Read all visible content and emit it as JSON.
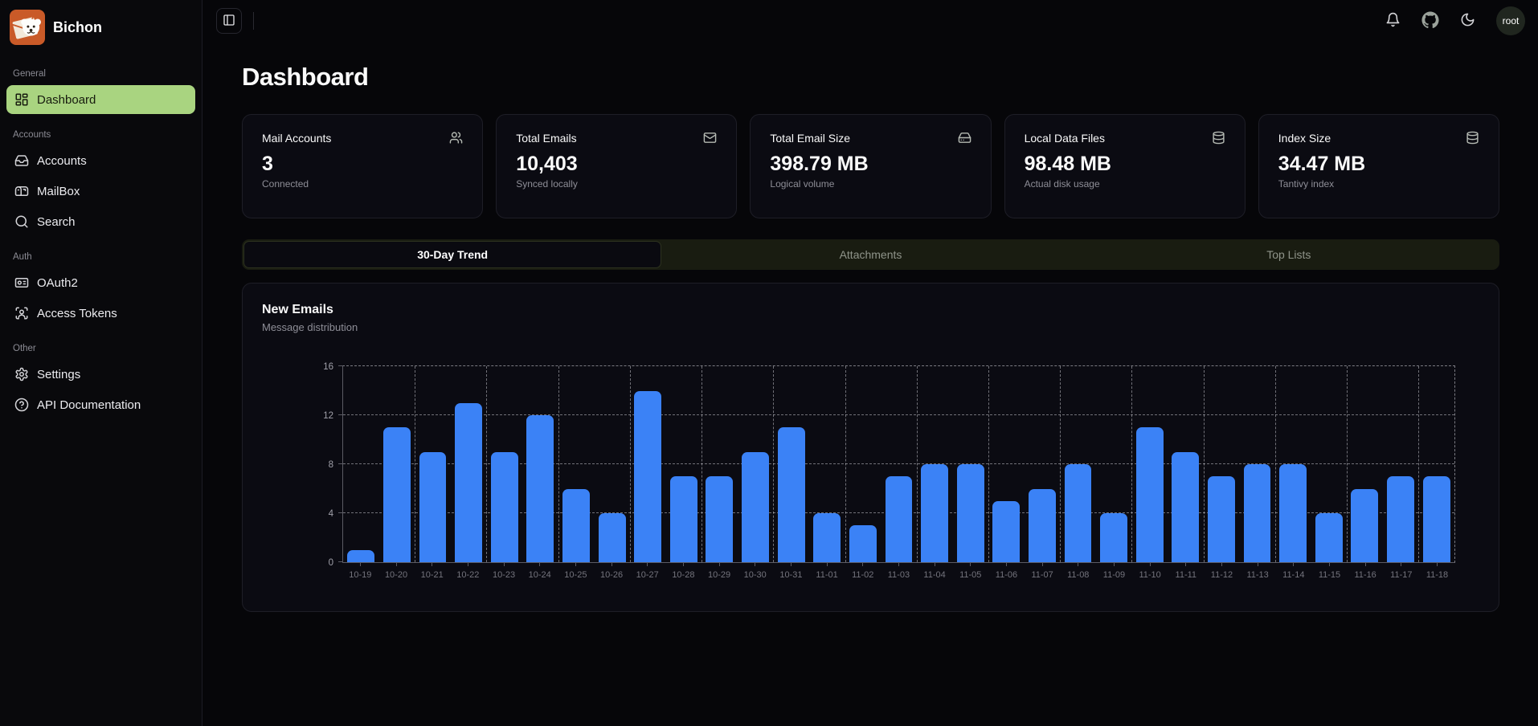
{
  "app": {
    "name": "Bichon",
    "logo_icon": "bichon-dog-envelope-logo"
  },
  "topbar": {
    "toggle_icon": "panel-left-icon",
    "icons": [
      "bell-icon",
      "github-icon",
      "moon-icon"
    ],
    "user": "root"
  },
  "sidebar": {
    "sections": [
      {
        "label": "General",
        "items": [
          {
            "label": "Dashboard",
            "icon": "dashboard-icon",
            "active": true
          }
        ]
      },
      {
        "label": "Accounts",
        "items": [
          {
            "label": "Accounts",
            "icon": "inbox-icon",
            "active": false
          },
          {
            "label": "MailBox",
            "icon": "mailbox-icon",
            "active": false
          },
          {
            "label": "Search",
            "icon": "search-icon",
            "active": false
          }
        ]
      },
      {
        "label": "Auth",
        "items": [
          {
            "label": "OAuth2",
            "icon": "id-card-icon",
            "active": false
          },
          {
            "label": "Access Tokens",
            "icon": "access-token-icon",
            "active": false
          }
        ]
      },
      {
        "label": "Other",
        "items": [
          {
            "label": "Settings",
            "icon": "gear-icon",
            "active": false
          },
          {
            "label": "API Documentation",
            "icon": "help-circle-icon",
            "active": false
          }
        ]
      }
    ]
  },
  "page": {
    "title": "Dashboard"
  },
  "stats": {
    "cards": [
      {
        "title": "Mail Accounts",
        "value": "3",
        "subtitle": "Connected",
        "icon": "users-icon"
      },
      {
        "title": "Total Emails",
        "value": "10,403",
        "subtitle": "Synced locally",
        "icon": "mail-icon"
      },
      {
        "title": "Total Email Size",
        "value": "398.79 MB",
        "subtitle": "Logical volume",
        "icon": "hard-drive-icon"
      },
      {
        "title": "Local Data Files",
        "value": "98.48 MB",
        "subtitle": "Actual disk usage",
        "icon": "database-icon"
      },
      {
        "title": "Index Size",
        "value": "34.47 MB",
        "subtitle": "Tantivy index",
        "icon": "database-icon"
      }
    ]
  },
  "tabs": {
    "items": [
      {
        "label": "30-Day Trend",
        "active": true
      },
      {
        "label": "Attachments",
        "active": false
      },
      {
        "label": "Top Lists",
        "active": false
      }
    ]
  },
  "chart_card": {
    "title": "New Emails",
    "subtitle": "Message distribution"
  },
  "chart_data": {
    "type": "bar",
    "title": "New Emails",
    "subtitle": "Message distribution",
    "categories": [
      "10-19",
      "10-20",
      "10-21",
      "10-22",
      "10-23",
      "10-24",
      "10-25",
      "10-26",
      "10-27",
      "10-28",
      "10-29",
      "10-30",
      "10-31",
      "11-01",
      "11-02",
      "11-03",
      "11-04",
      "11-05",
      "11-06",
      "11-07",
      "11-08",
      "11-09",
      "11-10",
      "11-11",
      "11-12",
      "11-13",
      "11-14",
      "11-15",
      "11-16",
      "11-17",
      "11-18"
    ],
    "values": [
      1,
      11,
      9,
      13,
      9,
      12,
      6,
      4,
      14,
      7,
      7,
      9,
      11,
      4,
      3,
      7,
      8,
      8,
      5,
      6,
      8,
      4,
      11,
      9,
      7,
      8,
      8,
      4,
      6,
      7,
      7
    ],
    "xlabel": "",
    "ylabel": "",
    "ylim": [
      0,
      16
    ],
    "yticks": [
      0,
      4,
      8,
      12,
      16
    ],
    "grid": "dashed",
    "legend": "none",
    "bar_color": "#3b82f6"
  },
  "colors": {
    "accent_green": "#a9d480",
    "bar_blue": "#3b82f6",
    "card_bg": "#0b0b12",
    "page_bg": "#060609"
  }
}
